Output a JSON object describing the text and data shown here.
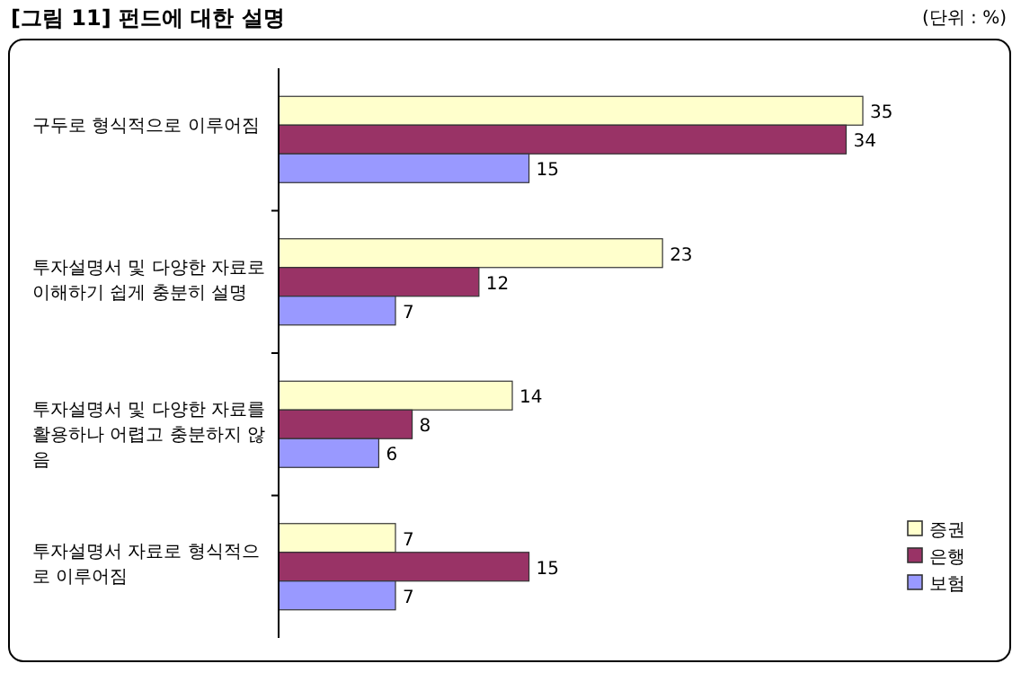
{
  "chart_data": {
    "type": "bar",
    "orientation": "horizontal",
    "title": "[그림 11] 펀드에 대한 설명",
    "subtitle": "(단위 : %)",
    "categories": [
      "구두로 형식적으로 이루어짐",
      "투자설명서 및 다양한 자료로 이해하기 쉽게 충분히 설명",
      "투자설명서 및 다양한 자료를 활용하나 어렵고 충분하지 않음",
      "투자설명서 자료로 형식적으로 이루어짐"
    ],
    "series": [
      {
        "name": "증권",
        "color": "#ffffcc",
        "values": [
          35,
          23,
          14,
          7
        ]
      },
      {
        "name": "은행",
        "color": "#993366",
        "values": [
          34,
          12,
          8,
          15
        ]
      },
      {
        "name": "보험",
        "color": "#9999ff",
        "values": [
          15,
          7,
          6,
          7
        ]
      }
    ],
    "data_labels": true,
    "legend": "bottom right"
  }
}
